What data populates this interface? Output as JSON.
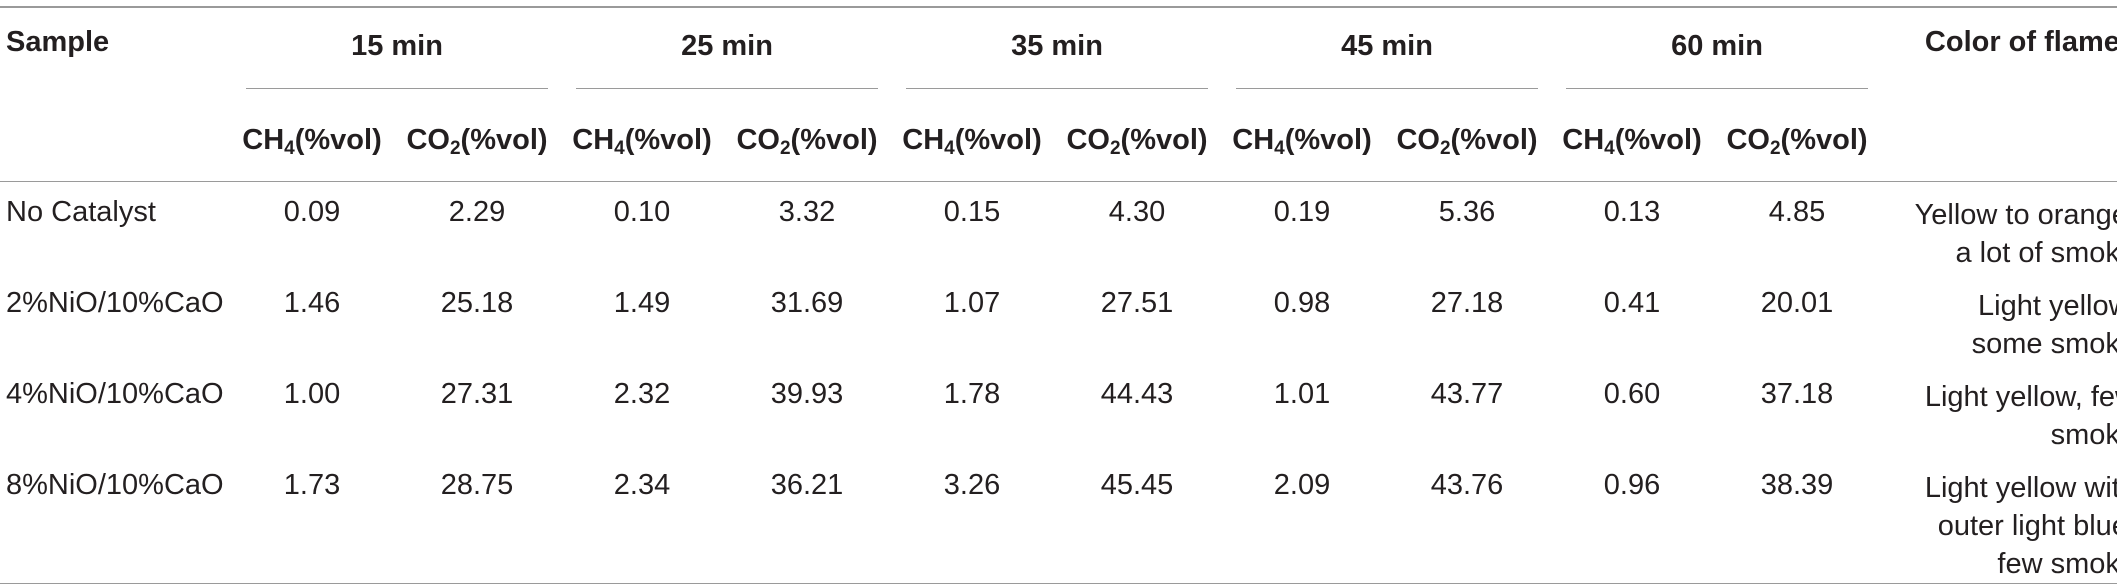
{
  "table": {
    "header": {
      "sample": "Sample",
      "groups": [
        "15 min",
        "25 min",
        "35 min",
        "45 min",
        "60 min"
      ],
      "color_of_flames": "Color of flames",
      "sub_ch4_prefix": "CH",
      "sub_ch4_sub": "4",
      "sub_ch4_suffix": "(%vol)",
      "sub_co2_prefix": "CO",
      "sub_co2_sub": "2",
      "sub_co2_suffix": "(%vol)"
    },
    "rows": [
      {
        "sample": "No Catalyst",
        "values": [
          "0.09",
          "2.29",
          "0.10",
          "3.32",
          "0.15",
          "4.30",
          "0.19",
          "5.36",
          "0.13",
          "4.85"
        ],
        "flame": [
          "Yellow to orange,",
          "a lot of smoke"
        ]
      },
      {
        "sample": "2%NiO/10%CaO",
        "values": [
          "1.46",
          "25.18",
          "1.49",
          "31.69",
          "1.07",
          "27.51",
          "0.98",
          "27.18",
          "0.41",
          "20.01"
        ],
        "flame": [
          "Light yellow,",
          "some smoke"
        ]
      },
      {
        "sample": "4%NiO/10%CaO",
        "values": [
          "1.00",
          "27.31",
          "2.32",
          "39.93",
          "1.78",
          "44.43",
          "1.01",
          "43.77",
          "0.60",
          "37.18"
        ],
        "flame": [
          "Light yellow, few",
          "smoke"
        ]
      },
      {
        "sample": "8%NiO/10%CaO",
        "values": [
          "1.73",
          "28.75",
          "2.34",
          "36.21",
          "3.26",
          "45.45",
          "2.09",
          "43.76",
          "0.96",
          "38.39"
        ],
        "flame": [
          "Light yellow with",
          "outer light blue,",
          "few smoke"
        ]
      }
    ]
  }
}
